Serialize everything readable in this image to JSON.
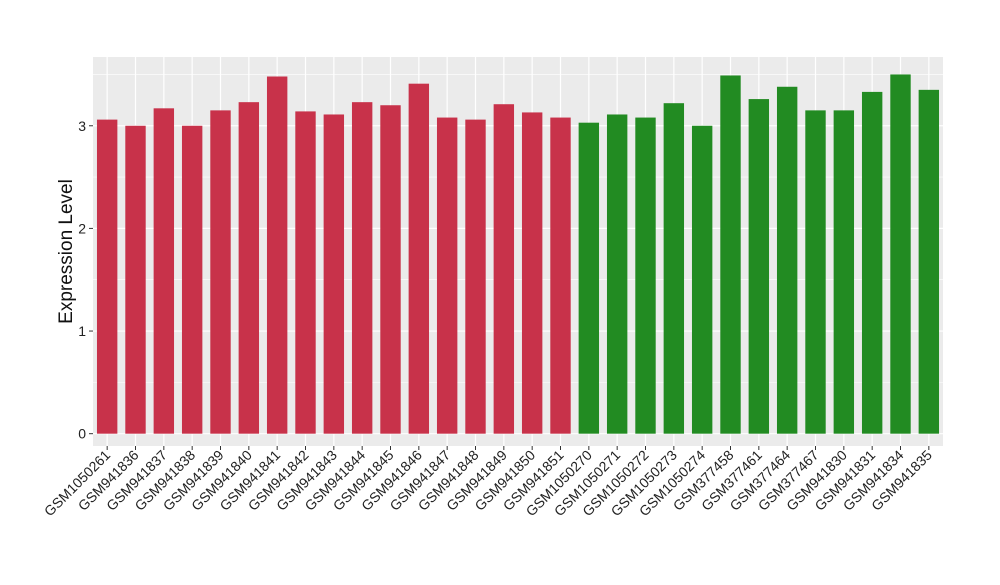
{
  "chart_data": {
    "type": "bar",
    "title": "",
    "xlabel": "",
    "ylabel": "Expression Level",
    "ylim": [
      -0.12,
      3.67
    ],
    "yticks": [
      0,
      1,
      2,
      3
    ],
    "grid": true,
    "categories": [
      "GSM1050261",
      "GSM941836",
      "GSM941837",
      "GSM941838",
      "GSM941839",
      "GSM941840",
      "GSM941841",
      "GSM941842",
      "GSM941843",
      "GSM941844",
      "GSM941845",
      "GSM941846",
      "GSM941847",
      "GSM941848",
      "GSM941849",
      "GSM941850",
      "GSM941851",
      "GSM1050270",
      "GSM1050271",
      "GSM1050272",
      "GSM1050273",
      "GSM1050274",
      "GSM377458",
      "GSM377461",
      "GSM377464",
      "GSM377467",
      "GSM941830",
      "GSM941831",
      "GSM941834",
      "GSM941835"
    ],
    "values": [
      3.06,
      3.0,
      3.17,
      3.0,
      3.15,
      3.23,
      3.48,
      3.14,
      3.11,
      3.23,
      3.2,
      3.41,
      3.08,
      3.06,
      3.21,
      3.13,
      3.08,
      3.03,
      3.11,
      3.08,
      3.22,
      3.0,
      3.49,
      3.26,
      3.38,
      3.15,
      3.15,
      3.33,
      3.5,
      3.35
    ],
    "bar_colors": [
      "#c8324a",
      "#c8324a",
      "#c8324a",
      "#c8324a",
      "#c8324a",
      "#c8324a",
      "#c8324a",
      "#c8324a",
      "#c8324a",
      "#c8324a",
      "#c8324a",
      "#c8324a",
      "#c8324a",
      "#c8324a",
      "#c8324a",
      "#c8324a",
      "#c8324a",
      "#228b22",
      "#228b22",
      "#228b22",
      "#228b22",
      "#228b22",
      "#228b22",
      "#228b22",
      "#228b22",
      "#228b22",
      "#228b22",
      "#228b22",
      "#228b22",
      "#228b22"
    ],
    "panel_background": "#ebebeb",
    "grid_color": "#ffffff"
  }
}
